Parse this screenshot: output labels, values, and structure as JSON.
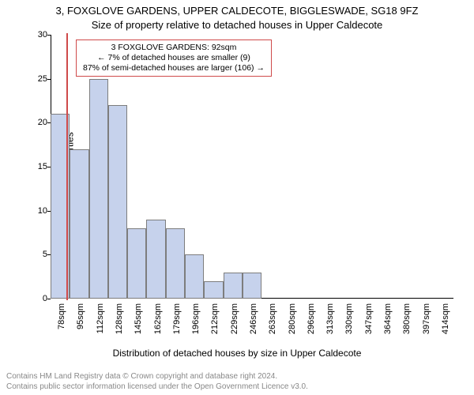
{
  "title_line1": "3, FOXGLOVE GARDENS, UPPER CALDECOTE, BIGGLESWADE, SG18 9FZ",
  "title_line2": "Size of property relative to detached houses in Upper Caldecote",
  "ylabel": "Number of detached properties",
  "xlabel": "Distribution of detached houses by size in Upper Caldecote",
  "footer_line1": "Contains HM Land Registry data © Crown copyright and database right 2024.",
  "footer_line2": "Contains public sector information licensed under the Open Government Licence v3.0.",
  "chart": {
    "type": "histogram",
    "background_color": "#ffffff",
    "bar_fill": "#c6d2ec",
    "bar_border": "#7d7d7d",
    "axis_color": "#000000",
    "text_color": "#000000",
    "footer_color": "#888888",
    "marker_color": "#cf4a4a",
    "ylim": [
      0,
      30
    ],
    "ytick_step": 5,
    "yticks": [
      0,
      5,
      10,
      15,
      20,
      25,
      30
    ],
    "marker_value_sqm": 92,
    "bin_start": 78,
    "bin_width": 17,
    "bins": [
      {
        "label": "78sqm",
        "value": 21
      },
      {
        "label": "95sqm",
        "value": 17
      },
      {
        "label": "112sqm",
        "value": 25
      },
      {
        "label": "128sqm",
        "value": 22
      },
      {
        "label": "145sqm",
        "value": 8
      },
      {
        "label": "162sqm",
        "value": 9
      },
      {
        "label": "179sqm",
        "value": 8
      },
      {
        "label": "196sqm",
        "value": 5
      },
      {
        "label": "212sqm",
        "value": 2
      },
      {
        "label": "229sqm",
        "value": 3
      },
      {
        "label": "246sqm",
        "value": 3
      },
      {
        "label": "263sqm",
        "value": 0
      },
      {
        "label": "280sqm",
        "value": 0
      },
      {
        "label": "296sqm",
        "value": 0
      },
      {
        "label": "313sqm",
        "value": 0
      },
      {
        "label": "330sqm",
        "value": 0
      },
      {
        "label": "347sqm",
        "value": 0
      },
      {
        "label": "364sqm",
        "value": 0
      },
      {
        "label": "380sqm",
        "value": 0
      },
      {
        "label": "397sqm",
        "value": 0
      },
      {
        "label": "414sqm",
        "value": 0
      }
    ],
    "legend": {
      "line1": "3 FOXGLOVE GARDENS: 92sqm",
      "line2": "← 7% of detached houses are smaller (9)",
      "line3": "87% of semi-detached houses are larger (106) →"
    },
    "title_fontsize": 13,
    "label_fontsize": 12,
    "tick_fontsize": 11,
    "legend_fontsize": 10.5,
    "footer_fontsize": 10
  }
}
